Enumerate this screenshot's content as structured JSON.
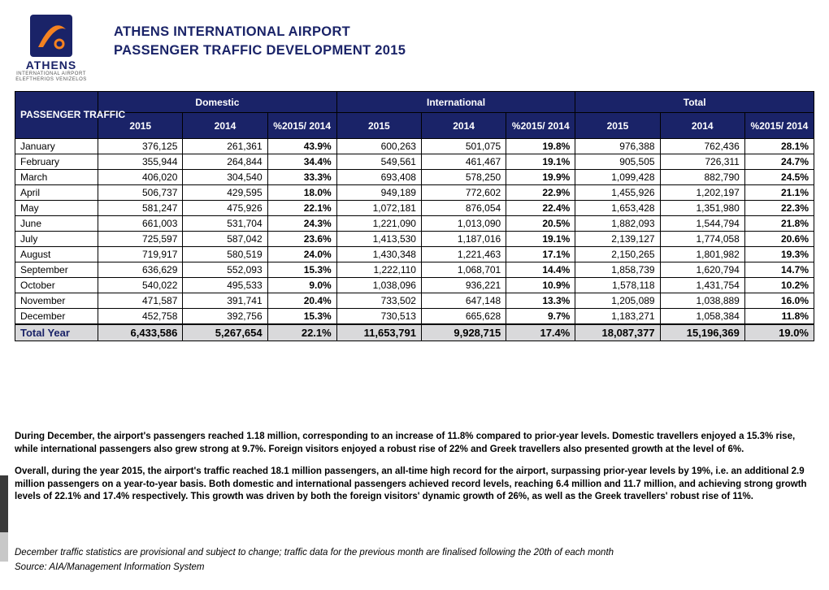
{
  "logo": {
    "brand": "ATHENS",
    "sub1": "INTERNATIONAL AIRPORT",
    "sub2": "ELEFTHERIOS VENIZELOS"
  },
  "title_line1": "ATHENS INTERNATIONAL AIRPORT",
  "title_line2": "PASSENGER TRAFFIC DEVELOPMENT 2015",
  "headers": {
    "corner": "PASSENGER TRAFFIC",
    "groups": [
      "Domestic",
      "International",
      "Total"
    ],
    "sub": [
      "2015",
      "2014",
      "%2015/ 2014"
    ]
  },
  "colors": {
    "navy": "#1a2368",
    "total_row_bg": "#d9d9db",
    "border": "#000000",
    "page_bg": "#ffffff"
  },
  "rows": [
    {
      "m": "January",
      "d15": "376,125",
      "d14": "261,361",
      "dp": "43.9%",
      "i15": "600,263",
      "i14": "501,075",
      "ip": "19.8%",
      "t15": "976,388",
      "t14": "762,436",
      "tp": "28.1%"
    },
    {
      "m": "February",
      "d15": "355,944",
      "d14": "264,844",
      "dp": "34.4%",
      "i15": "549,561",
      "i14": "461,467",
      "ip": "19.1%",
      "t15": "905,505",
      "t14": "726,311",
      "tp": "24.7%"
    },
    {
      "m": "March",
      "d15": "406,020",
      "d14": "304,540",
      "dp": "33.3%",
      "i15": "693,408",
      "i14": "578,250",
      "ip": "19.9%",
      "t15": "1,099,428",
      "t14": "882,790",
      "tp": "24.5%"
    },
    {
      "m": "April",
      "d15": "506,737",
      "d14": "429,595",
      "dp": "18.0%",
      "i15": "949,189",
      "i14": "772,602",
      "ip": "22.9%",
      "t15": "1,455,926",
      "t14": "1,202,197",
      "tp": "21.1%"
    },
    {
      "m": "May",
      "d15": "581,247",
      "d14": "475,926",
      "dp": "22.1%",
      "i15": "1,072,181",
      "i14": "876,054",
      "ip": "22.4%",
      "t15": "1,653,428",
      "t14": "1,351,980",
      "tp": "22.3%"
    },
    {
      "m": "June",
      "d15": "661,003",
      "d14": "531,704",
      "dp": "24.3%",
      "i15": "1,221,090",
      "i14": "1,013,090",
      "ip": "20.5%",
      "t15": "1,882,093",
      "t14": "1,544,794",
      "tp": "21.8%"
    },
    {
      "m": "July",
      "d15": "725,597",
      "d14": "587,042",
      "dp": "23.6%",
      "i15": "1,413,530",
      "i14": "1,187,016",
      "ip": "19.1%",
      "t15": "2,139,127",
      "t14": "1,774,058",
      "tp": "20.6%"
    },
    {
      "m": "August",
      "d15": "719,917",
      "d14": "580,519",
      "dp": "24.0%",
      "i15": "1,430,348",
      "i14": "1,221,463",
      "ip": "17.1%",
      "t15": "2,150,265",
      "t14": "1,801,982",
      "tp": "19.3%"
    },
    {
      "m": "September",
      "d15": "636,629",
      "d14": "552,093",
      "dp": "15.3%",
      "i15": "1,222,110",
      "i14": "1,068,701",
      "ip": "14.4%",
      "t15": "1,858,739",
      "t14": "1,620,794",
      "tp": "14.7%"
    },
    {
      "m": "October",
      "d15": "540,022",
      "d14": "495,533",
      "dp": "9.0%",
      "i15": "1,038,096",
      "i14": "936,221",
      "ip": "10.9%",
      "t15": "1,578,118",
      "t14": "1,431,754",
      "tp": "10.2%"
    },
    {
      "m": "November",
      "d15": "471,587",
      "d14": "391,741",
      "dp": "20.4%",
      "i15": "733,502",
      "i14": "647,148",
      "ip": "13.3%",
      "t15": "1,205,089",
      "t14": "1,038,889",
      "tp": "16.0%"
    },
    {
      "m": "December",
      "d15": "452,758",
      "d14": "392,756",
      "dp": "15.3%",
      "i15": "730,513",
      "i14": "665,628",
      "ip": "9.7%",
      "t15": "1,183,271",
      "t14": "1,058,384",
      "tp": "11.8%"
    }
  ],
  "total": {
    "m": "Total Year",
    "d15": "6,433,586",
    "d14": "5,267,654",
    "dp": "22.1%",
    "i15": "11,653,791",
    "i14": "9,928,715",
    "ip": "17.4%",
    "t15": "18,087,377",
    "t14": "15,196,369",
    "tp": "19.0%"
  },
  "note1": "During December, the airport's passengers reached 1.18 million, corresponding to an increase of 11.8% compared to prior-year levels.  Domestic travellers enjoyed a 15.3% rise, while international passengers also grew strong at 9.7%. Foreign visitors enjoyed a robust rise of 22% and Greek travellers also presented growth at the level of 6%.",
  "note2": "Overall, during the year 2015, the airport's traffic reached 18.1 million passengers, an all-time high record for the airport, surpassing prior-year levels by 19%, i.e. an additional 2.9 million passengers on a year-to-year basis.  Both domestic and international passengers achieved record levels, reaching 6.4 million and 11.7 million, and achieving strong growth levels of 22.1% and 17.4% respectively. This growth was driven by both the foreign visitors' dynamic growth of 26%, as well as the Greek travellers' robust rise of 11%.",
  "foot1": "December traffic statistics are provisional and subject to change; traffic data for the previous month are finalised following the 20th of each month",
  "foot2": "Source: AIA/Management Information System"
}
